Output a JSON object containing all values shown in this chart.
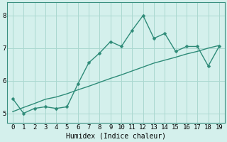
{
  "xlabel": "Humidex (Indice chaleur)",
  "x": [
    0,
    1,
    2,
    3,
    4,
    5,
    6,
    7,
    8,
    9,
    10,
    11,
    12,
    13,
    14,
    15,
    16,
    17,
    18,
    19
  ],
  "y_line": [
    5.45,
    5.0,
    5.15,
    5.2,
    5.15,
    5.2,
    5.9,
    6.55,
    6.85,
    7.2,
    7.05,
    7.55,
    8.0,
    7.3,
    7.45,
    6.9,
    7.05,
    7.05,
    6.45,
    7.05
  ],
  "y_trend": [
    5.05,
    5.18,
    5.3,
    5.43,
    5.5,
    5.6,
    5.72,
    5.83,
    5.95,
    6.07,
    6.18,
    6.3,
    6.42,
    6.54,
    6.63,
    6.72,
    6.82,
    6.9,
    7.0,
    7.08
  ],
  "line_color": "#2e8b78",
  "bg_color": "#d4f0ec",
  "grid_color": "#aad8d0",
  "marker_size": 2.5,
  "line_width": 1.0,
  "ylim": [
    4.7,
    8.4
  ],
  "yticks": [
    5,
    6,
    7,
    8
  ],
  "xlim": [
    -0.5,
    19.5
  ],
  "xticks": [
    0,
    1,
    2,
    3,
    4,
    5,
    6,
    7,
    8,
    9,
    10,
    11,
    12,
    13,
    14,
    15,
    16,
    17,
    18,
    19
  ],
  "tick_fontsize": 6.5,
  "xlabel_fontsize": 7
}
